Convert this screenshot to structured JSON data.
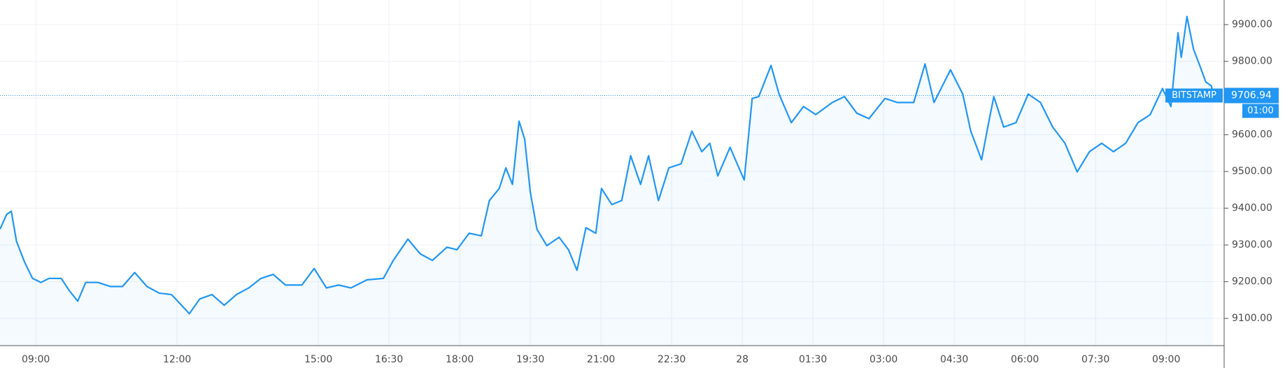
{
  "chart_data": {
    "type": "line",
    "series": [
      {
        "name": "BITSTAMP",
        "color": "#2196f3",
        "x": [
          8.24,
          8.38,
          8.48,
          8.59,
          8.76,
          8.93,
          9.11,
          9.28,
          9.54,
          9.71,
          9.89,
          10.06,
          10.32,
          10.58,
          10.84,
          11.1,
          11.36,
          11.62,
          11.88,
          12.05,
          12.26,
          12.48,
          12.74,
          13.0,
          13.26,
          13.52,
          13.78,
          14.04,
          14.3,
          14.65,
          14.91,
          15.17,
          15.43,
          15.69,
          16.03,
          16.38,
          16.59,
          16.9,
          17.16,
          17.42,
          17.73,
          17.94,
          18.2,
          18.46,
          18.63,
          18.84,
          18.98,
          19.12,
          19.26,
          19.38,
          19.5,
          19.64,
          19.85,
          20.11,
          20.31,
          20.49,
          20.68,
          20.89,
          21.01,
          21.23,
          21.44,
          21.63,
          21.84,
          22.01,
          22.22,
          22.44,
          22.7,
          22.93,
          23.14,
          23.31,
          23.48,
          23.74,
          24.04,
          24.21,
          24.35,
          24.61,
          24.78,
          25.04,
          25.3,
          25.56,
          25.91,
          26.17,
          26.43,
          26.69,
          27.03,
          27.29,
          27.64,
          27.88,
          28.07,
          28.42,
          28.68,
          28.85,
          29.08,
          29.23,
          29.34,
          29.55,
          29.81,
          30.07,
          30.33,
          30.59,
          30.85,
          31.11,
          31.37,
          31.63,
          31.88,
          32.14,
          32.4,
          32.66,
          32.92,
          33.1,
          33.25,
          33.32,
          33.44,
          33.58,
          33.7,
          33.84,
          33.96,
          34.0
        ],
        "values": [
          9343,
          9383,
          9392,
          9310,
          9254,
          9209,
          9198,
          9209,
          9209,
          9176,
          9147,
          9198,
          9198,
          9187,
          9187,
          9225,
          9187,
          9169,
          9165,
          9142,
          9113,
          9153,
          9165,
          9136,
          9165,
          9183,
          9209,
          9220,
          9191,
          9191,
          9236,
          9183,
          9191,
          9183,
          9205,
          9209,
          9258,
          9316,
          9276,
          9258,
          9294,
          9287,
          9332,
          9325,
          9421,
          9454,
          9510,
          9465,
          9637,
          9588,
          9443,
          9343,
          9298,
          9321,
          9287,
          9231,
          9347,
          9332,
          9454,
          9410,
          9421,
          9543,
          9465,
          9543,
          9421,
          9510,
          9521,
          9610,
          9554,
          9577,
          9488,
          9566,
          9477,
          9699,
          9704,
          9789,
          9711,
          9633,
          9677,
          9655,
          9688,
          9704,
          9659,
          9644,
          9699,
          9688,
          9688,
          9793,
          9688,
          9777,
          9711,
          9610,
          9532,
          9633,
          9704,
          9621,
          9633,
          9711,
          9688,
          9621,
          9577,
          9499,
          9554,
          9577,
          9554,
          9577,
          9633,
          9655,
          9726,
          9677,
          9878,
          9811,
          9922,
          9833,
          9793,
          9744,
          9733,
          9706.94
        ]
      }
    ],
    "last_price": {
      "label": "BITSTAMP",
      "value": 9706.94,
      "countdown": "01:00"
    },
    "xlim": [
      8.24,
      34.23
    ],
    "xticks": [
      {
        "value": 9,
        "label": "09:00"
      },
      {
        "value": 12,
        "label": "12:00"
      },
      {
        "value": 15,
        "label": "15:00"
      },
      {
        "value": 16.5,
        "label": "16:30"
      },
      {
        "value": 18,
        "label": "18:00"
      },
      {
        "value": 19.5,
        "label": "19:30"
      },
      {
        "value": 21,
        "label": "21:00"
      },
      {
        "value": 22.5,
        "label": "22:30"
      },
      {
        "value": 24,
        "label": "28"
      },
      {
        "value": 25.5,
        "label": "01:30"
      },
      {
        "value": 27,
        "label": "03:00"
      },
      {
        "value": 28.5,
        "label": "04:30"
      },
      {
        "value": 30,
        "label": "06:00"
      },
      {
        "value": 31.5,
        "label": "07:30"
      },
      {
        "value": 33,
        "label": "09:00"
      }
    ],
    "ylim": [
      9026,
      9967
    ],
    "yticks": [
      {
        "value": 9100,
        "label": "9100.00"
      },
      {
        "value": 9200,
        "label": "9200.00"
      },
      {
        "value": 9300,
        "label": "9300.00"
      },
      {
        "value": 9400,
        "label": "9400.00"
      },
      {
        "value": 9500,
        "label": "9500.00"
      },
      {
        "value": 9600,
        "label": "9600.00"
      },
      {
        "value": 9700,
        "label": "9700.00"
      },
      {
        "value": 9800,
        "label": "9800.00"
      },
      {
        "value": 9900,
        "label": "9900.00"
      }
    ],
    "grid": true
  }
}
